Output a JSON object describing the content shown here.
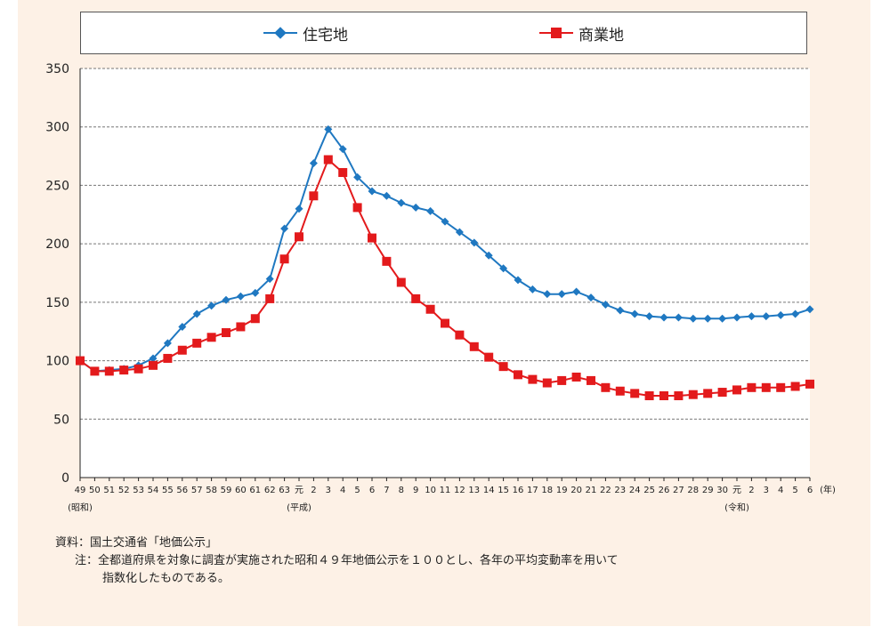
{
  "legend": {
    "residential": "住宅地",
    "commercial": "商業地"
  },
  "notes": {
    "source": "資料：国土交通省「地価公示」",
    "note_line1": "注：全都道府県を対象に調査が実施された昭和４９年地価公示を１００とし、各年の平均変動率を用いて",
    "note_line2": "指数化したものである。"
  },
  "chart_data": {
    "type": "line",
    "title": "",
    "xlabel": "(年)",
    "ylabel": "",
    "ylim": [
      0,
      350
    ],
    "yticks": [
      0,
      50,
      100,
      150,
      200,
      250,
      300,
      350
    ],
    "grid": "horizontal dashed",
    "legend_position": "top",
    "era_labels": [
      {
        "text": "(昭和)",
        "at_index": 0
      },
      {
        "text": "(平成)",
        "at_index": 15
      },
      {
        "text": "(令和)",
        "at_index": 45
      }
    ],
    "categories": [
      "49",
      "50",
      "51",
      "52",
      "53",
      "54",
      "55",
      "56",
      "57",
      "58",
      "59",
      "60",
      "61",
      "62",
      "63",
      "元",
      "2",
      "3",
      "4",
      "5",
      "6",
      "7",
      "8",
      "9",
      "10",
      "11",
      "12",
      "13",
      "14",
      "15",
      "16",
      "17",
      "18",
      "19",
      "20",
      "21",
      "22",
      "23",
      "24",
      "25",
      "26",
      "27",
      "28",
      "29",
      "30",
      "元",
      "2",
      "3",
      "4",
      "5",
      "6"
    ],
    "series": [
      {
        "name": "住宅地",
        "color": "#1f78c1",
        "marker": "diamond",
        "values": [
          100,
          91,
          92,
          93,
          96,
          102,
          115,
          129,
          140,
          147,
          152,
          155,
          158,
          170,
          213,
          230,
          269,
          298,
          281,
          257,
          245,
          241,
          235,
          231,
          228,
          219,
          210,
          201,
          190,
          179,
          169,
          161,
          157,
          157,
          159,
          154,
          148,
          143,
          140,
          138,
          137,
          137,
          136,
          136,
          136,
          137,
          138,
          138,
          139,
          140,
          144
        ]
      },
      {
        "name": "商業地",
        "color": "#e31a1c",
        "marker": "square",
        "values": [
          100,
          91,
          91,
          92,
          93,
          96,
          102,
          109,
          115,
          120,
          124,
          129,
          136,
          153,
          187,
          206,
          241,
          272,
          261,
          231,
          205,
          185,
          167,
          153,
          144,
          132,
          122,
          112,
          103,
          95,
          88,
          84,
          81,
          83,
          86,
          83,
          77,
          74,
          72,
          70,
          70,
          70,
          71,
          72,
          73,
          75,
          77,
          77,
          77,
          78,
          80
        ]
      }
    ]
  }
}
